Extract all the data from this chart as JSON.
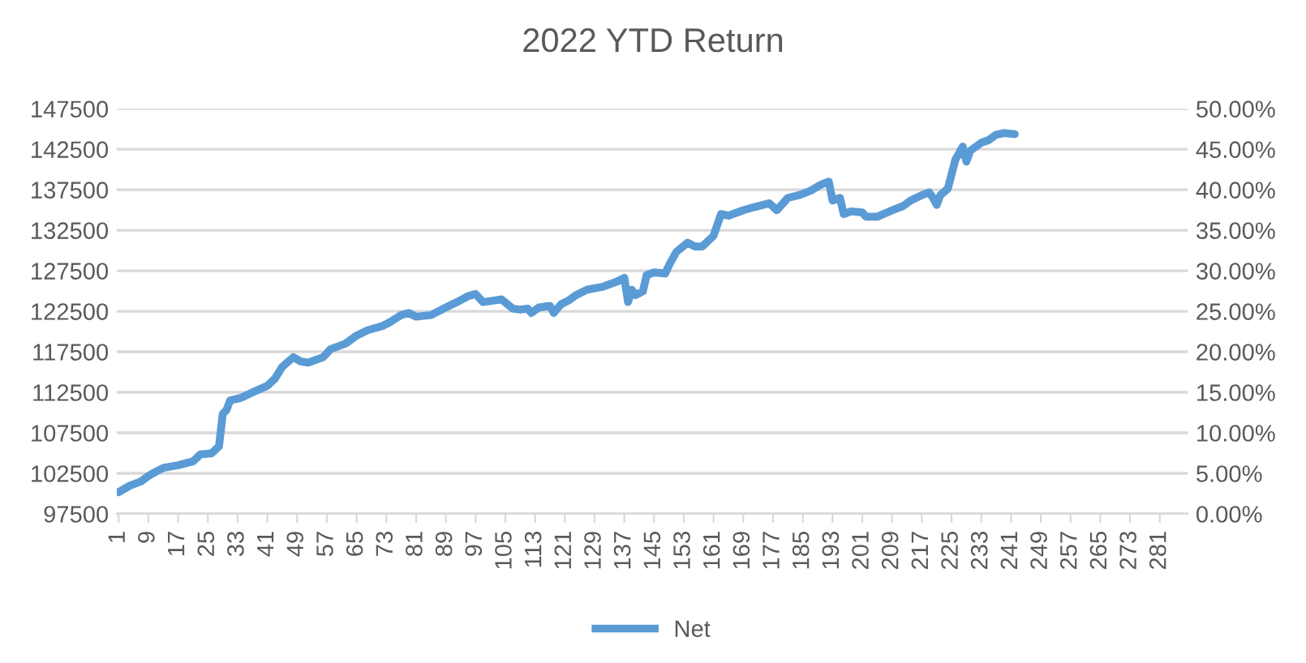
{
  "chart_data": {
    "type": "line",
    "title": "2022 YTD Return",
    "xlim": [
      0.5,
      288.5
    ],
    "xticks": [
      1,
      9,
      17,
      25,
      33,
      41,
      49,
      57,
      65,
      73,
      81,
      89,
      97,
      105,
      113,
      121,
      129,
      137,
      145,
      153,
      161,
      169,
      177,
      185,
      193,
      201,
      209,
      217,
      225,
      233,
      241,
      249,
      257,
      265,
      273,
      281
    ],
    "ylim": [
      97500,
      147500
    ],
    "yticks": [
      97500,
      102500,
      107500,
      112500,
      117500,
      122500,
      127500,
      132500,
      137500,
      142500,
      147500
    ],
    "y2lim": [
      0,
      50
    ],
    "y2ticks": [
      {
        "value": 0,
        "label": "0.00%"
      },
      {
        "value": 5,
        "label": "5.00%"
      },
      {
        "value": 10,
        "label": "10.00%"
      },
      {
        "value": 15,
        "label": "15.00%"
      },
      {
        "value": 20,
        "label": "20.00%"
      },
      {
        "value": 25,
        "label": "25.00%"
      },
      {
        "value": 30,
        "label": "30.00%"
      },
      {
        "value": 35,
        "label": "35.00%"
      },
      {
        "value": 40,
        "label": "40.00%"
      },
      {
        "value": 45,
        "label": "45.00%"
      },
      {
        "value": 50,
        "label": "50.00%"
      }
    ],
    "grid": "y",
    "legend": "bottom",
    "line_style": "solid",
    "marker": "none",
    "series": [
      {
        "name": "Net",
        "color": "#5b9bd5",
        "x": [
          1,
          4,
          7,
          9,
          11,
          13,
          17,
          21,
          23,
          26,
          28,
          29,
          30,
          31,
          34,
          37,
          41,
          43,
          45,
          48,
          50,
          52,
          56,
          58,
          62,
          65,
          68,
          72,
          74,
          77,
          79,
          81,
          85,
          89,
          92,
          95,
          97,
          99,
          102,
          104,
          107,
          109,
          111,
          112,
          114,
          117,
          118,
          120,
          122,
          124,
          127,
          131,
          135,
          137,
          138,
          139,
          140,
          142,
          143,
          145,
          148,
          149,
          151,
          154,
          156,
          158,
          161,
          163,
          165,
          169,
          172,
          176,
          178,
          181,
          184,
          187,
          190,
          192,
          193,
          195,
          196,
          198,
          201,
          202,
          205,
          209,
          212,
          214,
          217,
          219,
          220,
          221,
          222,
          224,
          226,
          228,
          229,
          230,
          233,
          235,
          237,
          239,
          242
        ],
        "values": [
          100167,
          100967,
          101500,
          102167,
          102700,
          103167,
          103500,
          103967,
          104833,
          104967,
          105833,
          109833,
          110300,
          111500,
          111833,
          112500,
          113300,
          114167,
          115633,
          116833,
          116300,
          116167,
          116833,
          117833,
          118500,
          119500,
          120167,
          120700,
          121167,
          122033,
          122300,
          121833,
          122033,
          122967,
          123633,
          124367,
          124633,
          123633,
          123833,
          123967,
          122833,
          122700,
          122833,
          122300,
          122967,
          123167,
          122300,
          123367,
          123833,
          124500,
          125167,
          125500,
          126167,
          126633,
          123633,
          125167,
          124500,
          124967,
          126967,
          127300,
          127167,
          128167,
          129833,
          130967,
          130500,
          130500,
          131833,
          134500,
          134300,
          134967,
          135367,
          135833,
          134967,
          136500,
          136833,
          137367,
          138167,
          138500,
          136167,
          136500,
          134500,
          134833,
          134700,
          134167,
          134167,
          134967,
          135500,
          136167,
          136833,
          137167,
          136500,
          135633,
          136833,
          137633,
          141167,
          142833,
          140967,
          142300,
          143300,
          143633,
          144300,
          144500,
          144367
        ]
      }
    ]
  }
}
